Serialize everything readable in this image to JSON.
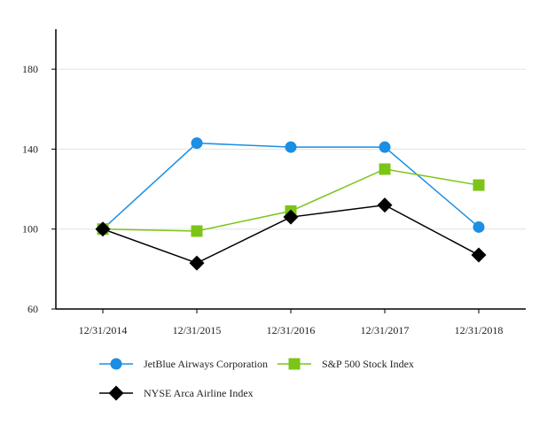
{
  "chart_data": {
    "type": "line",
    "title": "",
    "xlabel": "",
    "ylabel": "",
    "categories": [
      "12/31/2014",
      "12/31/2015",
      "12/31/2016",
      "12/31/2017",
      "12/31/2018"
    ],
    "ylim": [
      60,
      200
    ],
    "yticks": [
      60,
      100,
      140,
      180
    ],
    "grid": "horizontal",
    "legend_position": "bottom",
    "series": [
      {
        "name": "JetBlue Airways Corporation",
        "values": [
          100,
          143,
          141,
          141,
          101
        ],
        "color": "#1a8fe3",
        "marker": "circle"
      },
      {
        "name": "S&P 500 Stock Index",
        "values": [
          100,
          99,
          109,
          130,
          122
        ],
        "color": "#7cc417",
        "marker": "square"
      },
      {
        "name": "NYSE Arca Airline Index",
        "values": [
          100,
          83,
          106,
          112,
          87
        ],
        "color": "#000000",
        "marker": "diamond"
      }
    ]
  }
}
